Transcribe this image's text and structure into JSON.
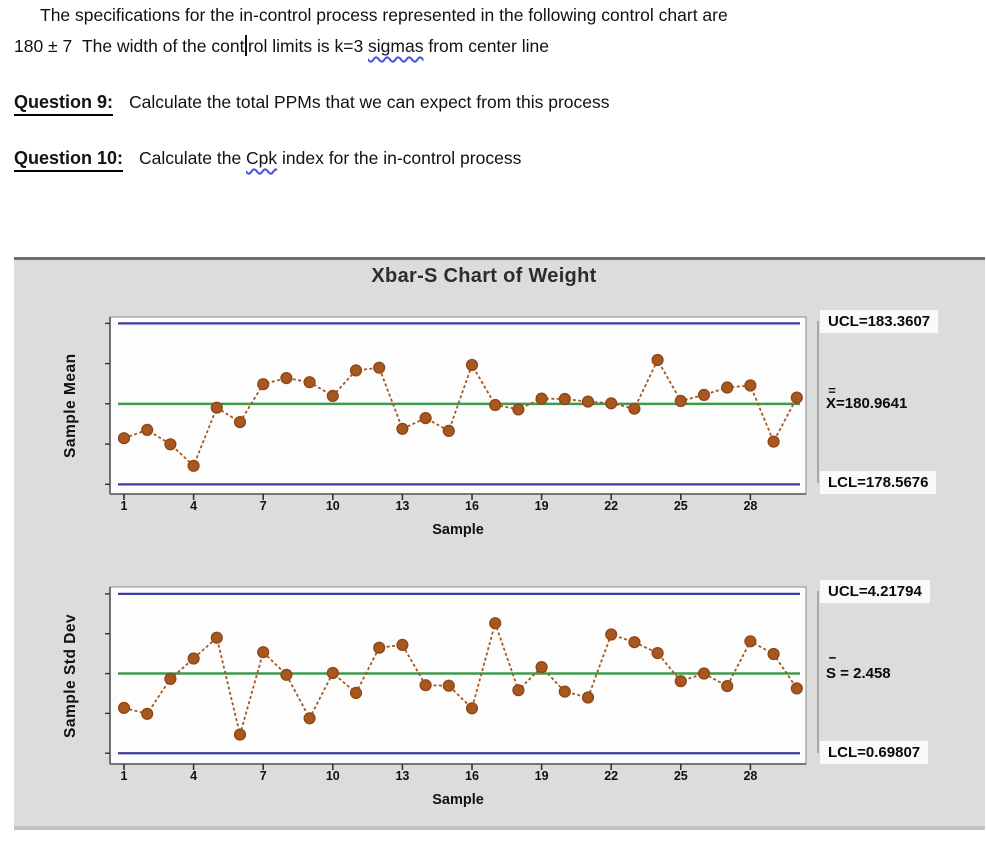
{
  "document": {
    "line1": "The specifications for the in-control process represented in the following control chart are",
    "line2_a": "180 ± 7  The width of the cont",
    "line2_b": "rol limits is k=3 ",
    "line2_sigmas": "sigmas",
    "line2_c": " from center line",
    "q9_label": "Question 9:",
    "q9_text": "Calculate the total PPMs that we can expect from this process",
    "q10_label": "Question 10:",
    "q10_a": "Calculate the ",
    "q10_cpk": "Cpk",
    "q10_b": " index for the in-control process"
  },
  "chart": {
    "title": "Xbar-S Chart of Weight",
    "colors": {
      "series": "#A8581E",
      "series_edge": "#8F4719",
      "limit_line": "#3D3DA0",
      "center_line": "#3E9B4F",
      "panel_bg": "#DCDCDC",
      "plot_bg": "#FDFDFD",
      "squiggle": "#4455DD"
    }
  },
  "chart_data": [
    {
      "type": "line",
      "name": "sample-mean-control-chart",
      "title": "Xbar-S Chart of Weight",
      "ylabel": "Sample Mean",
      "xlabel": "Sample",
      "x": [
        1,
        2,
        3,
        4,
        5,
        6,
        7,
        8,
        9,
        10,
        11,
        12,
        13,
        14,
        15,
        16,
        17,
        18,
        19,
        20,
        21,
        22,
        23,
        24,
        25,
        26,
        27,
        28,
        29,
        30
      ],
      "values": [
        179.94,
        180.19,
        179.76,
        179.12,
        180.85,
        180.42,
        181.55,
        181.73,
        181.61,
        181.2,
        181.96,
        182.04,
        180.22,
        180.54,
        180.16,
        182.12,
        180.93,
        180.8,
        181.12,
        181.11,
        181.03,
        180.98,
        180.82,
        182.27,
        181.05,
        181.23,
        181.45,
        181.51,
        179.84,
        181.15
      ],
      "ucl": 183.3607,
      "center": 180.9641,
      "lcl": 178.5676,
      "ylim": [
        178.28,
        183.55
      ],
      "xticks": [
        1,
        4,
        7,
        10,
        13,
        16,
        19,
        22,
        25,
        28
      ],
      "grid": "off",
      "labels": {
        "ucl": "UCL=183.3607",
        "center_accent": "=",
        "center_main": "X=180.9641",
        "lcl": "LCL=178.5676"
      }
    },
    {
      "type": "line",
      "name": "sample-stddev-control-chart",
      "title": "Xbar-S Chart of Weight",
      "ylabel": "Sample Std Dev",
      "xlabel": "Sample",
      "x": [
        1,
        2,
        3,
        4,
        5,
        6,
        7,
        8,
        9,
        10,
        11,
        12,
        13,
        14,
        15,
        16,
        17,
        18,
        19,
        20,
        21,
        22,
        23,
        24,
        25,
        26,
        27,
        28,
        29,
        30
      ],
      "values": [
        1.7,
        1.57,
        2.34,
        2.79,
        3.25,
        1.11,
        2.93,
        2.43,
        1.47,
        2.47,
        2.03,
        3.03,
        3.09,
        2.2,
        2.19,
        1.69,
        3.57,
        2.09,
        2.6,
        2.06,
        1.93,
        3.32,
        3.15,
        2.91,
        2.29,
        2.46,
        2.18,
        3.17,
        2.89,
        2.13
      ],
      "ucl": 4.21794,
      "center": 2.458,
      "lcl": 0.69807,
      "ylim": [
        0.46,
        4.37
      ],
      "xticks": [
        1,
        4,
        7,
        10,
        13,
        16,
        19,
        22,
        25,
        28
      ],
      "grid": "off",
      "labels": {
        "ucl": "UCL=4.21794",
        "center_accent": "▔",
        "center_main": "S = 2.458",
        "lcl": "LCL=0.69807"
      }
    }
  ]
}
